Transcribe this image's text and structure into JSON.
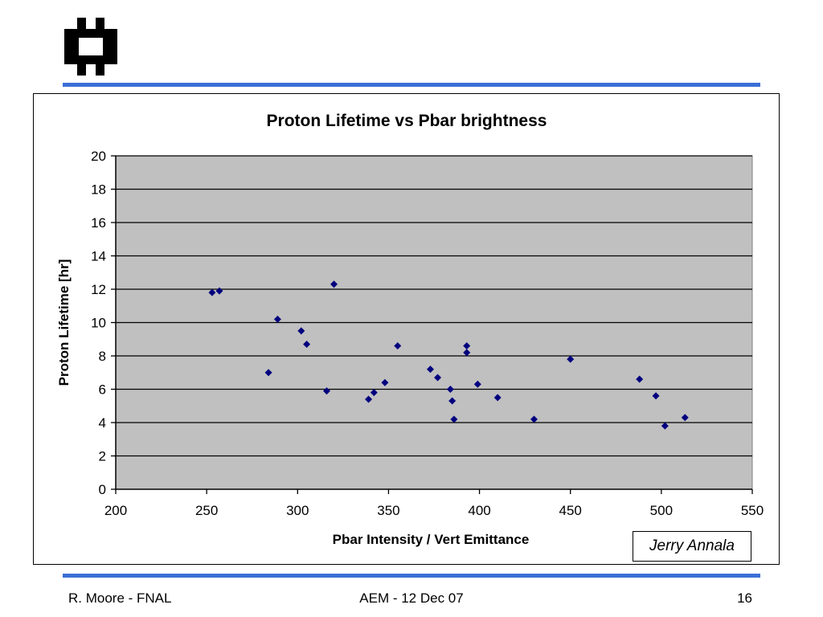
{
  "slide": {
    "colors": {
      "accent_rule": "#3b6fd6",
      "plot_bg": "#c0c0c0",
      "marker": "#00007f"
    },
    "footer": {
      "author": "R. Moore - FNAL",
      "event": "AEM - 12 Dec 07",
      "page_number": "16"
    },
    "credit": "Jerry Annala",
    "logo_icon": "fermilab-logo-icon"
  },
  "chart_data": {
    "type": "scatter",
    "title": "Proton Lifetime vs Pbar brightness",
    "xlabel": "Pbar Intensity / Vert Emittance",
    "ylabel": "Proton Lifetime [hr]",
    "xlim": [
      200,
      550
    ],
    "ylim": [
      0,
      20
    ],
    "xticks": [
      200,
      250,
      300,
      350,
      400,
      450,
      500,
      550
    ],
    "yticks": [
      0,
      2,
      4,
      6,
      8,
      10,
      12,
      14,
      16,
      18,
      20
    ],
    "grid": "horizontal",
    "legend": "none",
    "points": [
      {
        "x": 253,
        "y": 11.8
      },
      {
        "x": 257,
        "y": 11.9
      },
      {
        "x": 284,
        "y": 7.0
      },
      {
        "x": 289,
        "y": 10.2
      },
      {
        "x": 302,
        "y": 9.5
      },
      {
        "x": 305,
        "y": 8.7
      },
      {
        "x": 316,
        "y": 5.9
      },
      {
        "x": 320,
        "y": 12.3
      },
      {
        "x": 339,
        "y": 5.4
      },
      {
        "x": 342,
        "y": 5.8
      },
      {
        "x": 348,
        "y": 6.4
      },
      {
        "x": 355,
        "y": 8.6
      },
      {
        "x": 373,
        "y": 7.2
      },
      {
        "x": 377,
        "y": 6.7
      },
      {
        "x": 384,
        "y": 6.0
      },
      {
        "x": 385,
        "y": 5.3
      },
      {
        "x": 386,
        "y": 4.2
      },
      {
        "x": 393,
        "y": 8.6
      },
      {
        "x": 393,
        "y": 8.2
      },
      {
        "x": 399,
        "y": 6.3
      },
      {
        "x": 410,
        "y": 5.5
      },
      {
        "x": 430,
        "y": 4.2
      },
      {
        "x": 450,
        "y": 7.8
      },
      {
        "x": 488,
        "y": 6.6
      },
      {
        "x": 497,
        "y": 5.6
      },
      {
        "x": 502,
        "y": 3.8
      },
      {
        "x": 513,
        "y": 4.3
      }
    ]
  }
}
